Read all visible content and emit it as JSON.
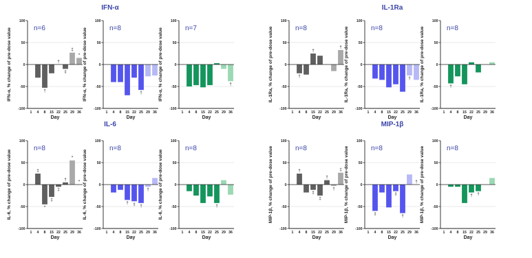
{
  "chart_data": [
    {
      "type": "bar",
      "panel": "IFN-α",
      "group": 0,
      "title": "IFN-α",
      "ylabel": "IFN-α, % change of pre-dose value",
      "xlabel": "Day",
      "n": "n=6",
      "categories": [
        "1",
        "4",
        "8",
        "15",
        "22",
        "25",
        "29",
        "36"
      ],
      "ylim": [
        -100,
        100
      ],
      "yticks": [
        -100,
        -50,
        0,
        50,
        100
      ],
      "values": [
        0,
        -30,
        -53,
        -20,
        0,
        -10,
        27,
        15
      ],
      "annotations": [
        "",
        "",
        "†",
        "",
        "†",
        "‡",
        "‡",
        "*"
      ],
      "colors": {
        "dark": "#5f5f5f",
        "light": "#a9a9a9"
      }
    },
    {
      "type": "bar",
      "panel": "IFN-α",
      "group": 1,
      "ylabel": "IFN-α, % change of pre-dose value",
      "xlabel": "Day",
      "n": "n=8",
      "categories": [
        "1",
        "4",
        "8",
        "15",
        "22",
        "25",
        "29",
        "36"
      ],
      "ylim": [
        -100,
        100
      ],
      "yticks": [
        -100,
        -50,
        0,
        50,
        100
      ],
      "values": [
        0,
        -40,
        -40,
        -70,
        -30,
        -58,
        -27,
        -25
      ],
      "annotations": [
        "",
        "",
        "",
        "",
        "",
        "†",
        "",
        ""
      ],
      "colors": {
        "dark": "#5555ee",
        "light": "#b6b9f6"
      }
    },
    {
      "type": "bar",
      "panel": "IFN-α",
      "group": 2,
      "ylabel": "IFN-α, % change of pre-dose value",
      "xlabel": "Day",
      "n": "n=7",
      "categories": [
        "1",
        "4",
        "8",
        "15",
        "22",
        "25",
        "29",
        "36"
      ],
      "ylim": [
        -100,
        100
      ],
      "yticks": [
        -100,
        -50,
        0,
        50,
        100
      ],
      "values": [
        0,
        -50,
        -47,
        -52,
        -47,
        3,
        -10,
        -38
      ],
      "annotations": [
        "",
        "",
        "",
        "",
        "",
        "",
        "",
        "†"
      ],
      "colors": {
        "dark": "#14955c",
        "light": "#9ad9b3"
      }
    },
    {
      "type": "bar",
      "panel": "IL-1Ra",
      "group": 0,
      "title": "IL-1Ra",
      "ylabel": "IL-1Ra, % change of pre-dose value",
      "xlabel": "Day",
      "n": "n=8",
      "categories": [
        "1",
        "4",
        "8",
        "15",
        "22",
        "25",
        "29",
        "36"
      ],
      "ylim": [
        -100,
        100
      ],
      "yticks": [
        -100,
        -50,
        0,
        50,
        100
      ],
      "values": [
        0,
        -20,
        -23,
        25,
        20,
        0,
        -15,
        33
      ],
      "annotations": [
        "",
        "†",
        "",
        "†",
        "",
        "",
        "",
        "†"
      ],
      "colors": {
        "dark": "#5f5f5f",
        "light": "#a9a9a9"
      }
    },
    {
      "type": "bar",
      "panel": "IL-1Ra",
      "group": 1,
      "ylabel": "IL-1Ra, % change of pre-dose value",
      "xlabel": "Day",
      "n": "n=8",
      "categories": [
        "1",
        "4",
        "8",
        "15",
        "22",
        "25",
        "29",
        "36"
      ],
      "ylim": [
        -100,
        100
      ],
      "yticks": [
        -100,
        -50,
        0,
        50,
        100
      ],
      "values": [
        0,
        -32,
        -35,
        -52,
        -45,
        -62,
        -25,
        -35
      ],
      "annotations": [
        "",
        "",
        "",
        "",
        "",
        "",
        "†",
        ""
      ],
      "colors": {
        "dark": "#5555ee",
        "light": "#b6b9f6"
      }
    },
    {
      "type": "bar",
      "panel": "IL-1Ra",
      "group": 2,
      "ylabel": "IL-1Ra, % change of pre-dose value",
      "xlabel": "Day",
      "n": "n=8",
      "categories": [
        "1",
        "4",
        "8",
        "15",
        "22",
        "25",
        "29",
        "36"
      ],
      "ylim": [
        -100,
        100
      ],
      "yticks": [
        -100,
        -50,
        0,
        50,
        100
      ],
      "values": [
        0,
        -43,
        -27,
        -45,
        5,
        -18,
        0,
        5
      ],
      "annotations": [
        "",
        "†",
        "",
        "",
        "",
        "",
        "",
        ""
      ],
      "colors": {
        "dark": "#14955c",
        "light": "#9ad9b3"
      }
    },
    {
      "type": "bar",
      "panel": "IL-6",
      "group": 0,
      "title": "IL-6",
      "ylabel": "IL-6, % change of pre-dose value",
      "xlabel": "Day",
      "n": "n=8",
      "categories": [
        "1",
        "4",
        "8",
        "15",
        "22",
        "25",
        "29",
        "36"
      ],
      "ylim": [
        -100,
        100
      ],
      "yticks": [
        -100,
        -50,
        0,
        50,
        100
      ],
      "values": [
        0,
        25,
        -45,
        -28,
        -5,
        5,
        55,
        0
      ],
      "annotations": [
        "",
        "‡",
        "*",
        "‡",
        "‡",
        "†",
        "*",
        "*"
      ],
      "colors": {
        "dark": "#5f5f5f",
        "light": "#a9a9a9"
      }
    },
    {
      "type": "bar",
      "panel": "IL-6",
      "group": 1,
      "ylabel": "IL-6, % change of pre-dose value",
      "xlabel": "Day",
      "n": "n=8",
      "categories": [
        "1",
        "4",
        "8",
        "15",
        "22",
        "25",
        "29",
        "36"
      ],
      "ylim": [
        -100,
        100
      ],
      "yticks": [
        -100,
        -50,
        0,
        50,
        100
      ],
      "values": [
        0,
        -18,
        -12,
        -35,
        -38,
        -42,
        -5,
        15
      ],
      "annotations": [
        "",
        "",
        "",
        "†",
        "‡",
        "†",
        "†",
        ""
      ],
      "colors": {
        "dark": "#5555ee",
        "light": "#b6b9f6"
      }
    },
    {
      "type": "bar",
      "panel": "IL-6",
      "group": 2,
      "ylabel": "IL-6, % change of pre-dose value",
      "xlabel": "Day",
      "n": "n=8",
      "categories": [
        "1",
        "4",
        "8",
        "15",
        "22",
        "25",
        "29",
        "36"
      ],
      "ylim": [
        -100,
        100
      ],
      "yticks": [
        -100,
        -50,
        0,
        50,
        100
      ],
      "values": [
        0,
        -15,
        -25,
        -42,
        -27,
        -42,
        10,
        -23
      ],
      "annotations": [
        "",
        "",
        "",
        "",
        "",
        "†",
        "",
        ""
      ],
      "colors": {
        "dark": "#14955c",
        "light": "#9ad9b3"
      }
    },
    {
      "type": "bar",
      "panel": "MIP-1β",
      "group": 0,
      "title": "MIP-1β",
      "ylabel": "MIP-1β, % change of pre-dose value",
      "xlabel": "Day",
      "n": "n=8",
      "categories": [
        "1",
        "4",
        "8",
        "15",
        "22",
        "25",
        "29",
        "36"
      ],
      "ylim": [
        -100,
        100
      ],
      "yticks": [
        -100,
        -50,
        0,
        50,
        100
      ],
      "values": [
        0,
        25,
        -18,
        -12,
        -25,
        10,
        -3,
        27
      ],
      "annotations": [
        "",
        "†",
        "",
        "‡",
        "‡",
        "†",
        "†",
        "‡"
      ],
      "colors": {
        "dark": "#5f5f5f",
        "light": "#a9a9a9"
      }
    },
    {
      "type": "bar",
      "panel": "MIP-1β",
      "group": 1,
      "ylabel": "MIP-1β, % change of pre-dose value",
      "xlabel": "Day",
      "n": "n=8",
      "categories": [
        "1",
        "4",
        "8",
        "15",
        "22",
        "25",
        "29",
        "36"
      ],
      "ylim": [
        -100,
        100
      ],
      "yticks": [
        -100,
        -50,
        0,
        50,
        100
      ],
      "values": [
        0,
        -60,
        -18,
        -52,
        -15,
        -65,
        23,
        0
      ],
      "annotations": [
        "",
        "‡",
        "",
        "",
        "‡",
        "†",
        "",
        "†"
      ],
      "colors": {
        "dark": "#5555ee",
        "light": "#b6b9f6"
      }
    },
    {
      "type": "bar",
      "panel": "MIP-1β",
      "group": 2,
      "ylabel": "MIP-1β, % change of pre-dose value",
      "xlabel": "Day",
      "n": "n=8",
      "categories": [
        "1",
        "4",
        "8",
        "15",
        "22",
        "25",
        "29",
        "36"
      ],
      "ylim": [
        -100,
        100
      ],
      "yticks": [
        -100,
        -50,
        0,
        50,
        100
      ],
      "values": [
        0,
        -5,
        -5,
        -42,
        -18,
        -15,
        0,
        15
      ],
      "annotations": [
        "",
        "",
        "",
        "",
        "†",
        "†",
        "",
        ""
      ],
      "colors": {
        "dark": "#14955c",
        "light": "#9ad9b3"
      }
    }
  ]
}
